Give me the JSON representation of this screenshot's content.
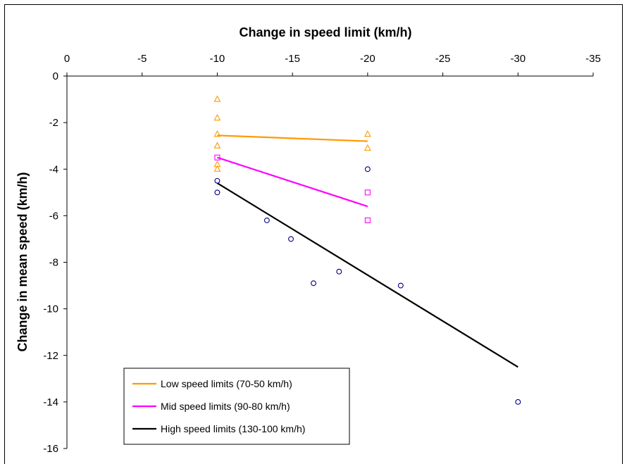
{
  "chart_data": {
    "type": "scatter",
    "title": "Change in speed limit (km/h)",
    "xlabel": "Change in speed limit (km/h)",
    "ylabel": "Change in mean speed (km/h)",
    "xlim": [
      0,
      -35
    ],
    "ylim": [
      -16,
      0
    ],
    "x_ticks": [
      0,
      -5,
      -10,
      -15,
      -20,
      -25,
      -30,
      -35
    ],
    "y_ticks": [
      0,
      -2,
      -4,
      -6,
      -8,
      -10,
      -12,
      -14,
      -16
    ],
    "x_axis_position": "top",
    "grid": false,
    "legend_position": "bottom-left",
    "series": [
      {
        "name": "Low speed limits (70-50 km/h)",
        "color": "#ff9900",
        "marker": "triangle",
        "points": [
          [
            -10,
            -1.0
          ],
          [
            -10,
            -1.8
          ],
          [
            -10,
            -2.5
          ],
          [
            -10,
            -3.0
          ],
          [
            -10,
            -3.8
          ],
          [
            -10,
            -4.0
          ],
          [
            -20,
            -2.5
          ],
          [
            -20,
            -3.1
          ]
        ],
        "trend": [
          [
            -10,
            -2.55
          ],
          [
            -20,
            -2.8
          ]
        ]
      },
      {
        "name": "Mid speed limits (90-80 km/h)",
        "color": "#ff00ff",
        "marker": "square",
        "points": [
          [
            -10,
            -3.5
          ],
          [
            -20,
            -5.0
          ],
          [
            -20,
            -6.2
          ]
        ],
        "trend": [
          [
            -10,
            -3.5
          ],
          [
            -20,
            -5.6
          ]
        ]
      },
      {
        "name": "High speed limits (130-100 km/h)",
        "color": "#000000",
        "marker_color": "#000080",
        "marker": "circle",
        "points": [
          [
            -10,
            -4.5
          ],
          [
            -10,
            -5.0
          ],
          [
            -13.3,
            -6.2
          ],
          [
            -14.9,
            -7.0
          ],
          [
            -16.4,
            -8.9
          ],
          [
            -18.1,
            -8.4
          ],
          [
            -20,
            -4.0
          ],
          [
            -22.2,
            -9.0
          ],
          [
            -30,
            -14.0
          ]
        ],
        "trend": [
          [
            -10,
            -4.6
          ],
          [
            -30,
            -12.5
          ]
        ]
      }
    ]
  }
}
